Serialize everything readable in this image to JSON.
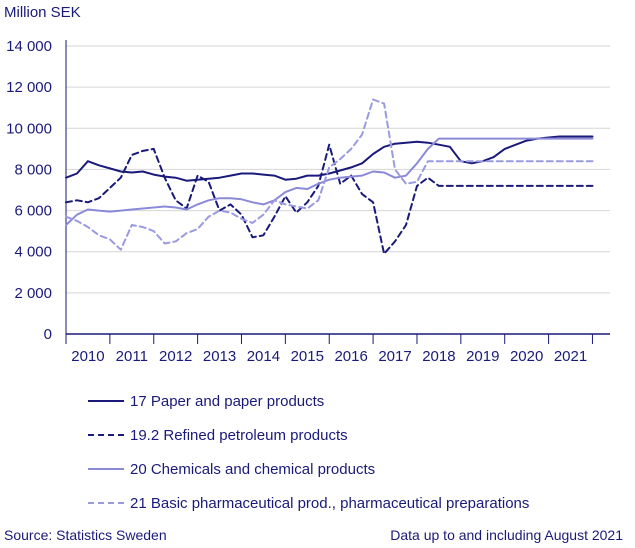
{
  "chart_data": {
    "type": "line",
    "title": "",
    "ylabel": "Million SEK",
    "xlabel": "",
    "ylim": [
      0,
      14000
    ],
    "yticks": [
      0,
      2000,
      4000,
      6000,
      8000,
      10000,
      12000,
      14000
    ],
    "ytick_labels": [
      "0",
      "2 000",
      "4 000",
      "6 000",
      "8 000",
      "10 000",
      "12 000",
      "14 000"
    ],
    "xlim": [
      2009.5,
      2021.9
    ],
    "xticks": [
      2010,
      2011,
      2012,
      2013,
      2014,
      2015,
      2016,
      2017,
      2018,
      2019,
      2020,
      2021
    ],
    "xtick_labels": [
      "2010",
      "2011",
      "2012",
      "2013",
      "2014",
      "2015",
      "2016",
      "2017",
      "2018",
      "2019",
      "2020",
      "2021"
    ],
    "grid": "horizontal",
    "legend_position": "bottom",
    "x": [
      2009.5,
      2009.75,
      2010.0,
      2010.25,
      2010.5,
      2010.75,
      2011.0,
      2011.25,
      2011.5,
      2011.75,
      2012.0,
      2012.25,
      2012.5,
      2012.75,
      2013.0,
      2013.25,
      2013.5,
      2013.75,
      2014.0,
      2014.25,
      2014.5,
      2014.75,
      2015.0,
      2015.25,
      2015.5,
      2015.75,
      2016.0,
      2016.25,
      2016.5,
      2016.75,
      2017.0,
      2017.25,
      2017.5,
      2017.75,
      2018.0,
      2018.25,
      2018.5,
      2018.75,
      2019.0,
      2019.25,
      2019.5,
      2019.75,
      2020.0,
      2020.25,
      2020.5,
      2020.75,
      2021.0,
      2021.25,
      2021.5
    ],
    "series": [
      {
        "name": "17 Paper and paper products",
        "color": "#1a1a7a",
        "dash": "solid",
        "values": [
          7600,
          7800,
          8400,
          8200,
          8050,
          7900,
          7850,
          7900,
          7750,
          7650,
          7600,
          7450,
          7500,
          7550,
          7600,
          7700,
          7800,
          7800,
          7750,
          7700,
          7500,
          7550,
          7700,
          7700,
          7800,
          7950,
          8100,
          8300,
          8750,
          9100,
          9250,
          9300,
          9350,
          9300,
          9200,
          9100,
          8400,
          8300,
          8400,
          8600,
          9000,
          9200,
          9400,
          9500,
          9550,
          9600,
          9600,
          9600,
          9600
        ]
      },
      {
        "name": "19.2 Refined petroleum products",
        "color": "#1a1a7a",
        "dash": "dashed",
        "values": [
          6400,
          6500,
          6400,
          6600,
          7100,
          7600,
          8700,
          8900,
          9000,
          7600,
          6500,
          6100,
          7700,
          7400,
          6000,
          6300,
          5800,
          4700,
          4800,
          5700,
          6700,
          5900,
          6400,
          7200,
          9200,
          7300,
          7700,
          6800,
          6400,
          3900,
          4500,
          5300,
          7200,
          7600,
          7200,
          7200,
          7200,
          7200,
          7200,
          7200,
          7200,
          7200,
          7200,
          7200,
          7200,
          7200,
          7200,
          7200,
          7200
        ]
      },
      {
        "name": "20 Chemicals and chemical products",
        "color": "#8a8ad8",
        "dash": "solid",
        "values": [
          5300,
          5800,
          6050,
          6000,
          5950,
          6000,
          6050,
          6100,
          6150,
          6200,
          6150,
          6050,
          6300,
          6500,
          6600,
          6600,
          6550,
          6400,
          6300,
          6500,
          6900,
          7100,
          7050,
          7300,
          7500,
          7600,
          7650,
          7700,
          7900,
          7850,
          7600,
          7700,
          8300,
          9000,
          9500,
          9500,
          9500,
          9500,
          9500,
          9500,
          9500,
          9500,
          9500,
          9500,
          9500,
          9500,
          9500,
          9500,
          9500
        ]
      },
      {
        "name": "21 Basic pharmaceutical prod., pharmaceutical preparations",
        "color": "#9a9ae0",
        "dash": "dashed",
        "values": [
          5700,
          5500,
          5200,
          4800,
          4600,
          4100,
          5300,
          5200,
          5000,
          4400,
          4500,
          4900,
          5100,
          5700,
          6000,
          5900,
          5600,
          5400,
          5800,
          6500,
          6300,
          6200,
          6100,
          6500,
          8100,
          8500,
          9000,
          9700,
          11400,
          11200,
          8000,
          7300,
          7400,
          8400,
          8400,
          8400,
          8400,
          8400,
          8400,
          8400,
          8400,
          8400,
          8400,
          8400,
          8400,
          8400,
          8400,
          8400,
          8400
        ]
      }
    ]
  },
  "footer": {
    "source": "Source: Statistics Sweden",
    "note": "Data up to and including August 2021"
  }
}
